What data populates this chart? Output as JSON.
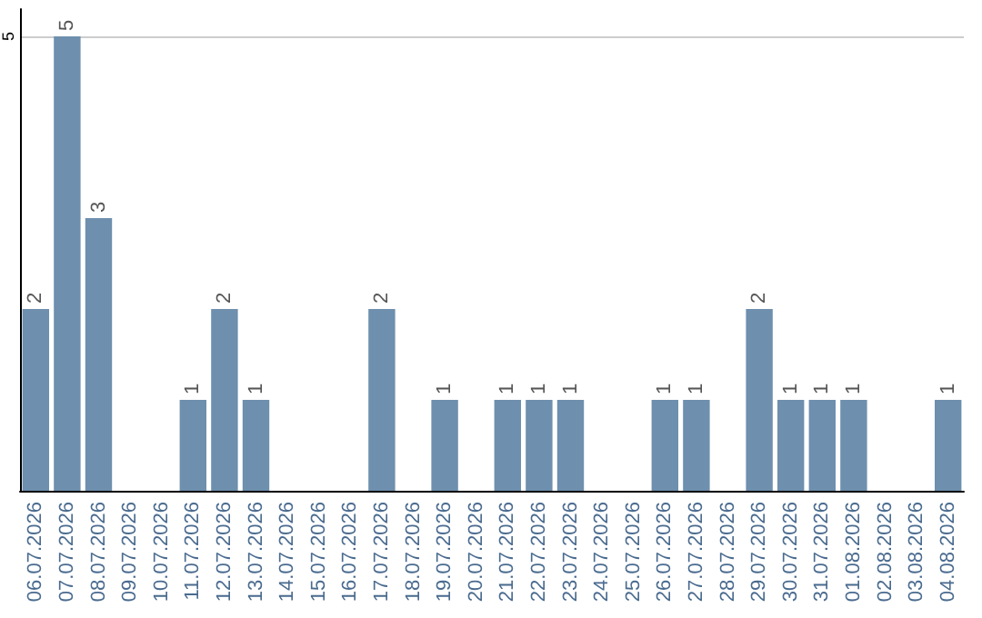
{
  "chart_data": {
    "type": "bar",
    "categories": [
      "06.07.2026",
      "07.07.2026",
      "08.07.2026",
      "09.07.2026",
      "10.07.2026",
      "11.07.2026",
      "12.07.2026",
      "13.07.2026",
      "14.07.2026",
      "15.07.2026",
      "16.07.2026",
      "17.07.2026",
      "18.07.2026",
      "19.07.2026",
      "20.07.2026",
      "21.07.2026",
      "22.07.2026",
      "23.07.2026",
      "24.07.2026",
      "25.07.2026",
      "26.07.2026",
      "27.07.2026",
      "28.07.2026",
      "29.07.2026",
      "30.07.2026",
      "31.07.2026",
      "01.08.2026",
      "02.08.2026",
      "03.08.2026",
      "04.08.2026"
    ],
    "values": [
      2,
      5,
      3,
      0,
      0,
      1,
      2,
      1,
      0,
      0,
      0,
      2,
      0,
      1,
      0,
      1,
      1,
      1,
      0,
      0,
      1,
      1,
      0,
      2,
      1,
      1,
      1,
      0,
      0,
      1
    ],
    "value_labels": [
      "2",
      "5",
      "3",
      null,
      null,
      "1",
      "2",
      "1",
      null,
      null,
      null,
      "2",
      null,
      "1",
      null,
      "1",
      "1",
      "1",
      null,
      null,
      "1",
      "1",
      null,
      "2",
      "1",
      "1",
      "1",
      null,
      null,
      "1"
    ],
    "color": "#6e8fae",
    "ylim": [
      0,
      5.3
    ],
    "yticks": [
      5
    ],
    "grid": "y"
  }
}
